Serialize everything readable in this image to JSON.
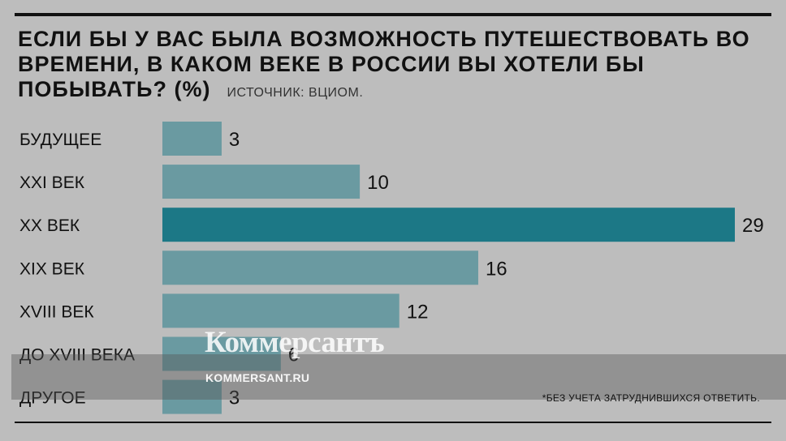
{
  "colors": {
    "background": "#bdbdbd",
    "bar": "#6a9aa1",
    "highlight": "#1c7886",
    "text": "#111111"
  },
  "header": {
    "title": "ЕСЛИ БЫ У ВАС БЫЛА ВОЗМОЖНОСТЬ ПУТЕШЕСТВОВАТЬ ВО ВРЕМЕНИ, В КАКОМ ВЕКЕ В РОССИИ ВЫ ХОТЕЛИ БЫ ПОБЫВАТЬ? (%)",
    "source": "ИСТОЧНИК: ВЦИОМ."
  },
  "footnote": "*БЕЗ УЧЕТА ЗАТРУДНИВШИХСЯ ОТВЕТИТЬ.",
  "watermark": {
    "logo": "Коммерсантъ",
    "url": "KOMMERSANT.RU"
  },
  "chart_data": {
    "type": "bar",
    "orientation": "horizontal",
    "categories": [
      "БУДУЩЕЕ",
      "XXI ВЕК",
      "XX ВЕК",
      "XIX ВЕК",
      "XVIII ВЕК",
      "ДО XVIII ВЕКА",
      "ДРУГОЕ"
    ],
    "values": [
      3,
      10,
      29,
      16,
      12,
      6,
      3
    ],
    "highlight_index": 2,
    "xlim": [
      0,
      29
    ],
    "grid": false,
    "legend": "none"
  }
}
